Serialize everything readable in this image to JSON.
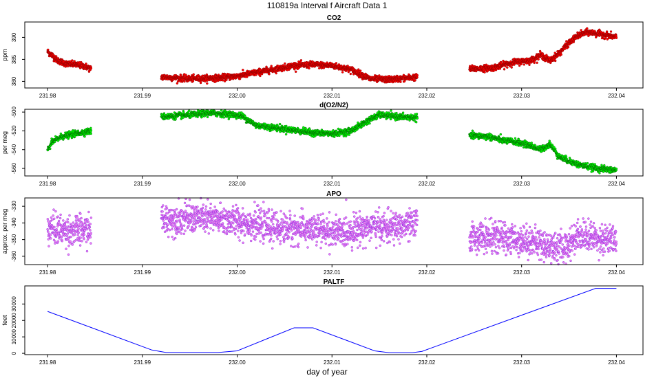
{
  "title": "110819a   Interval f Aircraft Data 1",
  "xlabel": "day of year",
  "x_ticks": [
    231.98,
    231.99,
    232.0,
    232.01,
    232.02,
    232.03,
    232.04
  ],
  "x_tick_labels": [
    "231.98",
    "231.99",
    "232.00",
    "232.01",
    "232.02",
    "232.03",
    "232.04"
  ],
  "xlim": [
    231.9776,
    232.0428
  ],
  "chart_data": [
    {
      "type": "scatter",
      "title": "CO2",
      "ylabel": "ppm",
      "ylim": [
        378.5,
        393.5
      ],
      "y_ticks": [
        380,
        385,
        390
      ],
      "y_tick_labels": [
        "380",
        "385",
        "390"
      ],
      "fill": "#ff0000",
      "stroke": "#8b0000",
      "segments": [
        {
          "x": [
            231.98,
            231.9805,
            231.981,
            231.982,
            231.983,
            231.984,
            231.9846
          ],
          "y": [
            386.8,
            385.9,
            384.8,
            384.0,
            383.8,
            383.4,
            382.8
          ]
        },
        {
          "x": [
            231.992,
            231.995,
            231.998,
            232.0,
            232.003,
            232.006,
            232.008,
            232.01,
            232.012,
            232.014,
            232.016,
            232.019
          ],
          "y": [
            381.0,
            380.6,
            380.8,
            381.2,
            382.4,
            383.6,
            383.8,
            383.6,
            382.7,
            380.6,
            380.4,
            381.0
          ]
        },
        {
          "x": [
            232.0245,
            232.027,
            232.029,
            232.031,
            232.032,
            232.033,
            232.034,
            232.035,
            232.036,
            232.037,
            232.039,
            232.04
          ],
          "y": [
            382.8,
            383.1,
            384.3,
            384.8,
            386.0,
            384.7,
            386.5,
            388.8,
            390.5,
            391.2,
            390.5,
            390.0
          ]
        }
      ]
    },
    {
      "type": "scatter",
      "title": "d(O2/N2)",
      "ylabel": "per meg",
      "ylim": [
        -568,
        -497
      ],
      "y_ticks": [
        -560,
        -540,
        -520,
        -500
      ],
      "y_tick_labels": [
        "-560",
        "-540",
        "-520",
        "-500"
      ],
      "fill": "#00ff00",
      "stroke": "#006400",
      "segments": [
        {
          "x": [
            231.98,
            231.9805,
            231.9815,
            231.9825,
            231.9835,
            231.9846
          ],
          "y": [
            -540,
            -532,
            -526,
            -524,
            -522,
            -520
          ]
        },
        {
          "x": [
            231.992,
            231.995,
            231.997,
            231.999,
            232.0005,
            232.002,
            232.005,
            232.008,
            232.01,
            232.012,
            232.014,
            232.015,
            232.017,
            232.019
          ],
          "y": [
            -505,
            -503,
            -501,
            -502,
            -504,
            -514,
            -518,
            -522,
            -523,
            -520,
            -508,
            -503,
            -505,
            -506
          ]
        },
        {
          "x": [
            232.0245,
            232.0265,
            232.028,
            232.0295,
            232.031,
            232.032,
            232.033,
            232.034,
            232.036,
            232.038,
            232.04
          ],
          "y": [
            -525,
            -526,
            -530,
            -532,
            -536,
            -540,
            -534,
            -548,
            -556,
            -560,
            -562
          ]
        }
      ]
    },
    {
      "type": "scatter",
      "title": "APO",
      "ylabel": "approx. per meg",
      "ylim": [
        -365,
        -325
      ],
      "y_ticks": [
        -360,
        -350,
        -340,
        -330
      ],
      "y_tick_labels": [
        "-360",
        "-350",
        "-340",
        "-330"
      ],
      "fill": "#ee82ee",
      "stroke": "#8a2be2",
      "segments": [
        {
          "x": [
            231.98,
            231.982,
            231.9846
          ],
          "y": [
            -343,
            -345,
            -344
          ]
        },
        {
          "x": [
            231.992,
            231.996,
            232.0,
            232.004,
            232.008,
            232.011,
            232.014,
            232.016,
            232.019
          ],
          "y": [
            -338,
            -337,
            -339,
            -343,
            -344,
            -346,
            -342,
            -343,
            -341
          ]
        },
        {
          "x": [
            232.0245,
            232.028,
            232.031,
            232.033,
            232.0345,
            232.036,
            232.038,
            232.04
          ],
          "y": [
            -348,
            -349,
            -351,
            -354,
            -355,
            -347,
            -349,
            -351
          ]
        }
      ]
    },
    {
      "type": "line",
      "title": "PALTF",
      "ylabel": "feet",
      "ylim": [
        -800,
        41000
      ],
      "y_ticks": [
        0,
        10000,
        20000,
        30000
      ],
      "y_tick_labels": [
        "0",
        "10000",
        "20000",
        "30000"
      ],
      "color": "#0000ff",
      "x": [
        231.98,
        231.991,
        231.9925,
        231.998,
        232.0,
        232.006,
        232.008,
        232.0145,
        232.016,
        232.0185,
        232.0195,
        232.0378,
        232.039,
        232.04
      ],
      "y": [
        25500,
        2000,
        500,
        500,
        1500,
        15500,
        15500,
        1500,
        400,
        400,
        1200,
        39500,
        39500,
        39500
      ]
    }
  ]
}
